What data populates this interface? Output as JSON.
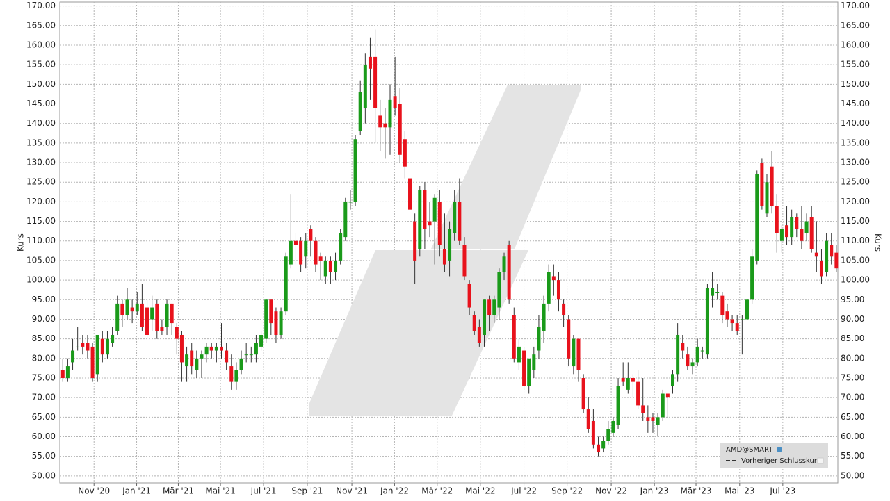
{
  "chart_data": {
    "type": "candlestick",
    "ylabel": "Kurs",
    "up_color": "#1a9a1a",
    "down_color": "#e8121c",
    "grid": true,
    "legend": {
      "position": "lower right",
      "entries": [
        "AMD@SMART",
        "Vorheriger Schlusskurs"
      ]
    },
    "xlim": [
      -0.6,
      156.3
    ],
    "xticks": [
      {
        "value": 6.3,
        "label": "Nov '20"
      },
      {
        "value": 14.9,
        "label": "Jan '21"
      },
      {
        "value": 23.3,
        "label": "Mär '21"
      },
      {
        "value": 31.8,
        "label": "Mai '21"
      },
      {
        "value": 40.5,
        "label": "Jul '21"
      },
      {
        "value": 49.3,
        "label": "Sep '21"
      },
      {
        "value": 58.3,
        "label": "Nov '21"
      },
      {
        "value": 66.9,
        "label": "Jan '22"
      },
      {
        "value": 75.5,
        "label": "Mär '22"
      },
      {
        "value": 84.2,
        "label": "Mai '22"
      },
      {
        "value": 93.0,
        "label": "Jul '22"
      },
      {
        "value": 101.7,
        "label": "Sep '22"
      },
      {
        "value": 110.6,
        "label": "Nov '22"
      },
      {
        "value": 119.3,
        "label": "Jan '23"
      },
      {
        "value": 127.7,
        "label": "Mär '23"
      },
      {
        "value": 136.5,
        "label": "Mai '23"
      },
      {
        "value": 145.2,
        "label": "Jul '23"
      }
    ],
    "ylim": [
      48.2,
      171
    ],
    "yticks": [
      {
        "value": 50,
        "label": "50.00"
      },
      {
        "value": 55,
        "label": "55.00"
      },
      {
        "value": 60,
        "label": "60.00"
      },
      {
        "value": 65,
        "label": "65.00"
      },
      {
        "value": 70,
        "label": "70.00"
      },
      {
        "value": 75,
        "label": "75.00"
      },
      {
        "value": 80,
        "label": "80.00"
      },
      {
        "value": 85,
        "label": "85.00"
      },
      {
        "value": 90,
        "label": "90.00"
      },
      {
        "value": 95,
        "label": "95.00"
      },
      {
        "value": 100,
        "label": "100.00"
      },
      {
        "value": 105,
        "label": "105.00"
      },
      {
        "value": 110,
        "label": "110.00"
      },
      {
        "value": 115,
        "label": "115.00"
      },
      {
        "value": 120,
        "label": "120.00"
      },
      {
        "value": 125,
        "label": "125.00"
      },
      {
        "value": 130,
        "label": "130.00"
      },
      {
        "value": 135,
        "label": "135.00"
      },
      {
        "value": 140,
        "label": "140.00"
      },
      {
        "value": 145,
        "label": "145.00"
      },
      {
        "value": 150,
        "label": "150.00"
      },
      {
        "value": 155,
        "label": "155.00"
      },
      {
        "value": 160,
        "label": "160.00"
      },
      {
        "value": 165,
        "label": "165.00"
      },
      {
        "value": 170,
        "label": "170.00"
      }
    ],
    "open": [
      77,
      75,
      79,
      83,
      84,
      84,
      83,
      76,
      85,
      81,
      84,
      87,
      94,
      91,
      93,
      92,
      94,
      93,
      90,
      94,
      88,
      88,
      94,
      88,
      86,
      78,
      82,
      77,
      80,
      81,
      83,
      82,
      83,
      82,
      78,
      74,
      77,
      81,
      81,
      81,
      83,
      85,
      95,
      92,
      86,
      92,
      104,
      110,
      110,
      106,
      113,
      110,
      106,
      101,
      105,
      102,
      105,
      111,
      120,
      120,
      138,
      144,
      157,
      157,
      142,
      140,
      139,
      147,
      145,
      136,
      126,
      115,
      108,
      123,
      115,
      115,
      120,
      108,
      105,
      112,
      120,
      109,
      99,
      91,
      88,
      86,
      95,
      91,
      93,
      102,
      109,
      91,
      79,
      82,
      73,
      77,
      82,
      87,
      94,
      101,
      100,
      94,
      90,
      78,
      85,
      75,
      67,
      64,
      58,
      57,
      59,
      61,
      63,
      75,
      72,
      75,
      74,
      68,
      65,
      65,
      63,
      65,
      71,
      73,
      76,
      84,
      81,
      78,
      79,
      82,
      81,
      96,
      97,
      96,
      92,
      90,
      89,
      90,
      90,
      95,
      105,
      130,
      117,
      129,
      119,
      110,
      114,
      111,
      116,
      113,
      112,
      116,
      107,
      105,
      102,
      109,
      107
    ],
    "high": [
      80,
      80,
      85,
      88,
      86,
      86,
      84,
      86,
      87,
      87,
      88,
      96,
      95,
      98,
      95,
      97,
      99,
      95,
      96,
      95,
      90,
      95,
      94,
      89,
      87,
      83,
      84,
      82,
      82,
      84,
      84,
      84,
      89,
      84,
      81,
      79,
      82,
      84,
      83,
      86,
      87,
      95,
      95,
      93,
      93,
      107,
      122,
      112,
      111,
      112,
      114,
      111,
      107,
      106,
      106,
      107,
      113,
      121,
      123,
      137,
      151,
      158,
      162,
      164,
      146,
      144,
      150,
      157,
      149,
      138,
      128,
      117,
      124,
      125,
      120,
      122,
      123,
      117,
      115,
      123,
      126,
      111,
      100,
      92,
      90,
      95,
      96,
      96,
      103,
      107,
      110,
      93,
      85,
      83,
      80,
      83,
      91,
      96,
      104,
      104,
      102,
      95,
      91,
      86,
      85,
      76,
      70,
      67,
      60,
      60,
      64,
      65,
      75,
      79,
      79,
      76,
      77,
      75,
      68,
      66,
      66,
      72,
      71,
      77,
      89,
      86,
      83,
      80,
      85,
      83,
      99,
      102,
      99,
      97,
      94,
      91,
      91,
      91,
      97,
      108,
      128,
      131,
      127,
      133,
      122,
      114,
      119,
      118,
      117,
      119,
      117,
      119,
      115,
      108,
      112,
      112,
      109
    ],
    "low": [
      74,
      74,
      77,
      82,
      81,
      80,
      74,
      74,
      79,
      80,
      83,
      86,
      88,
      90,
      89,
      91,
      87,
      85,
      87,
      85,
      86,
      86,
      86,
      81,
      74,
      74,
      76,
      75,
      75,
      79,
      80,
      79,
      80,
      77,
      72,
      72,
      76,
      79,
      79,
      79,
      82,
      84,
      86,
      84,
      85,
      91,
      103,
      104,
      102,
      103,
      106,
      102,
      100,
      99,
      99,
      100,
      104,
      110,
      118,
      119,
      137,
      140,
      146,
      135,
      133,
      131,
      132,
      142,
      130,
      126,
      117,
      99,
      106,
      108,
      111,
      104,
      106,
      102,
      101,
      110,
      109,
      100,
      91,
      86,
      83,
      83,
      87,
      89,
      90,
      100,
      94,
      79,
      77,
      72,
      71,
      75,
      80,
      84,
      92,
      96,
      92,
      88,
      78,
      76,
      74,
      66,
      61,
      57,
      55,
      56,
      58,
      60,
      62,
      73,
      71,
      70,
      67,
      64,
      61,
      61,
      60,
      64,
      65,
      71,
      74,
      80,
      77,
      76,
      78,
      80,
      80,
      93,
      95,
      89,
      88,
      87,
      86,
      81,
      89,
      94,
      104,
      118,
      116,
      117,
      107,
      107,
      109,
      109,
      111,
      108,
      110,
      107,
      102,
      99,
      101,
      104,
      102
    ],
    "close": [
      75,
      78,
      82,
      83,
      83,
      82,
      75,
      86,
      81,
      85,
      86,
      94,
      91,
      95,
      92,
      94,
      88,
      86,
      93,
      87,
      87,
      94,
      89,
      85,
      79,
      81,
      78,
      80,
      81,
      83,
      82,
      83,
      82,
      79,
      74,
      77,
      80,
      81,
      81,
      84,
      86,
      95,
      89,
      86,
      92,
      106,
      110,
      109,
      104,
      110,
      110,
      104,
      105,
      105,
      102,
      105,
      112,
      120,
      120,
      136,
      148,
      155,
      154,
      144,
      139,
      139,
      146,
      144,
      132,
      129,
      118,
      105,
      123,
      113,
      114,
      121,
      109,
      104,
      113,
      120,
      110,
      101,
      93,
      87,
      84,
      95,
      91,
      95,
      102,
      106,
      95,
      80,
      83,
      73,
      80,
      81,
      88,
      94,
      102,
      100,
      95,
      91,
      80,
      85,
      77,
      67,
      62,
      58,
      56,
      59,
      62,
      64,
      73,
      74,
      75,
      74,
      68,
      66,
      64,
      64,
      65,
      71,
      70,
      76,
      86,
      82,
      78,
      79,
      83,
      82,
      98,
      98,
      97,
      91,
      90,
      89,
      87,
      90,
      95,
      106,
      127,
      119,
      125,
      119,
      112,
      113,
      111,
      116,
      113,
      110,
      115,
      108,
      106,
      101,
      110,
      106,
      103
    ]
  }
}
